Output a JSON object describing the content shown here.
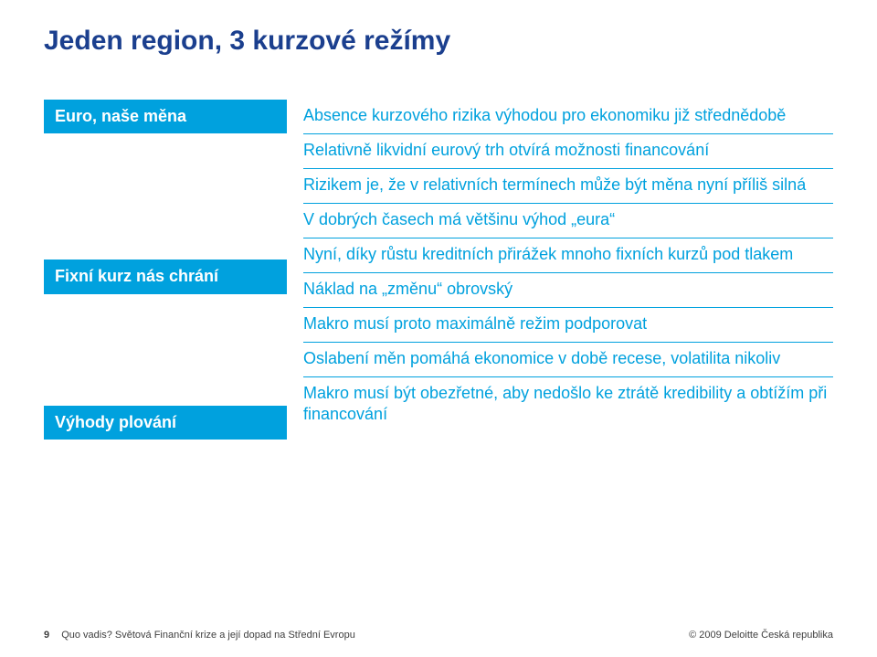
{
  "title": "Jeden region, 3 kurzové režímy",
  "labels": {
    "euro": "Euro, naše měna",
    "fixed": "Fixní kurz nás chrání",
    "floating": "Výhody plování"
  },
  "paras": {
    "p1": "Absence kurzového rizika výhodou pro ekonomiku již střednědobě",
    "p2": "Relativně likvidní eurový trh otvírá možnosti financování",
    "p3": "Rizikem je, že v relativních termínech může být měna nyní příliš silná",
    "p4": "V dobrých časech má většinu výhod „eura“",
    "p5": "Nyní, díky růstu kreditních přirážek mnoho fixních kurzů pod tlakem",
    "p6": "Náklad na „změnu“ obrovský",
    "p7": "Makro musí proto maximálně režim podporovat",
    "p8": "Oslabení měn pomáhá ekonomice v době recese, volatilita nikoliv",
    "p9": "Makro musí být obezřetné, aby nedošlo ke ztrátě kredibility a obtížím při financování"
  },
  "footer": {
    "page": "9",
    "left": "Quo vadis? Světová Finanční krize a její dopad na Střední Evropu",
    "right": "© 2009 Deloitte Česká republika"
  },
  "colors": {
    "title": "#1b3f8e",
    "accent": "#00a1de",
    "label_text": "#ffffff",
    "body_text": "#00a1de",
    "footer_text": "#3e3e3e",
    "background": "#ffffff"
  }
}
